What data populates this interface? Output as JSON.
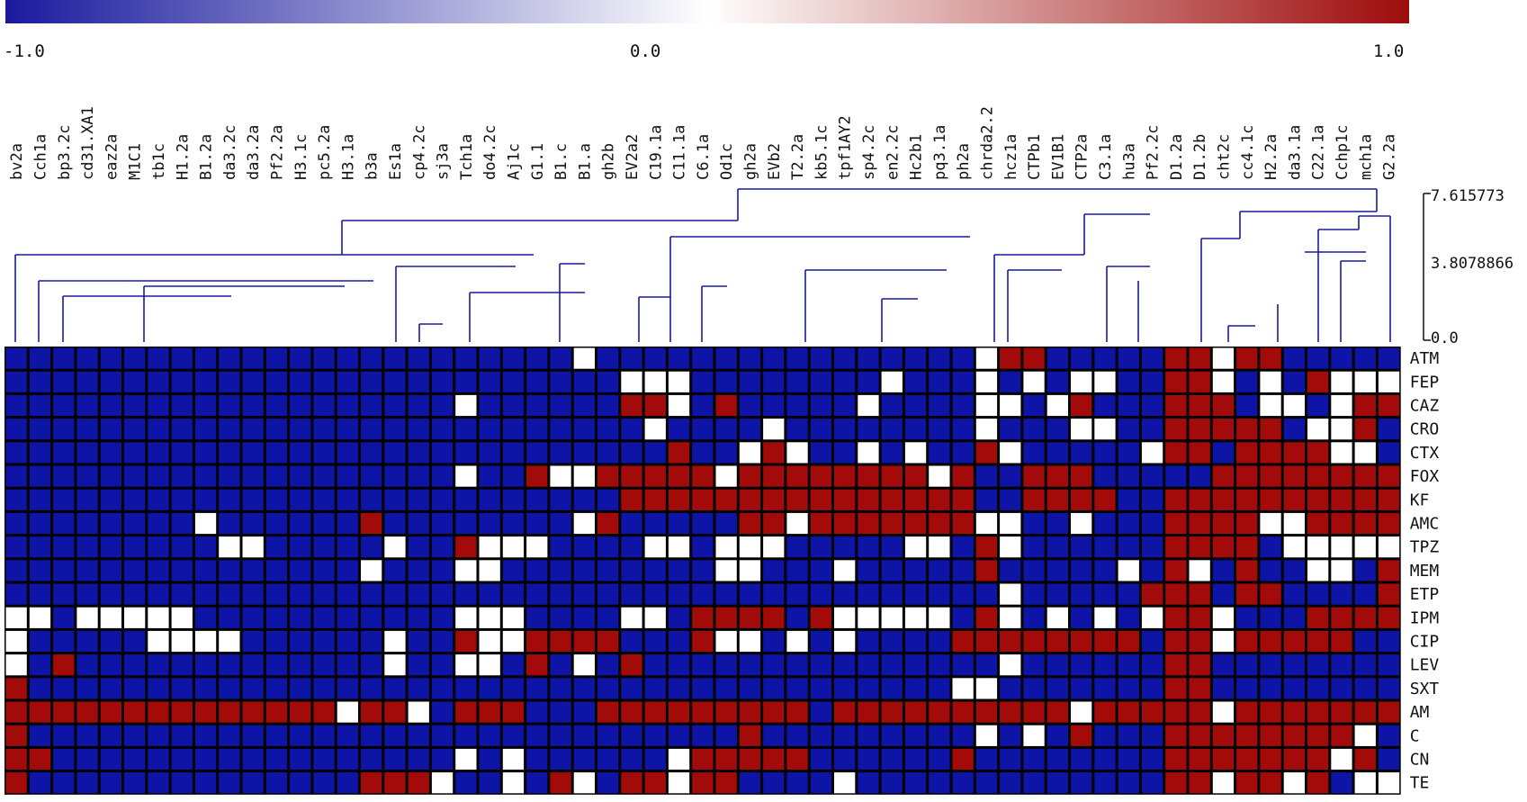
{
  "chart_data": {
    "type": "heatmap",
    "colorbar": {
      "min_label": "-1.0",
      "mid_label": "0.0",
      "max_label": "1.0",
      "colors": [
        "#1a1a9e",
        "#ffffff",
        "#9e0c0c"
      ]
    },
    "cell_colors": {
      "-1": "#0d14a6",
      "0": "#ffffff",
      "1": "#a30b0b"
    },
    "dendrogram_scale": {
      "max": "7.615773",
      "mid": "3.8078866",
      "min": "0.0"
    },
    "columns": [
      "bv2a",
      "Cch1a",
      "bp3.2c",
      "cd31.XA1",
      "eaz2a",
      "M1C1",
      "tb1c",
      "H1.2a",
      "B1.2a",
      "da3.2c",
      "da3.2a",
      "Pf2.2a",
      "H3.1c",
      "pc5.2a",
      "H3.1a",
      "b3a",
      "Es1a",
      "cp4.2c",
      "sj3a",
      "Tch1a",
      "do4.2c",
      "Aj1c",
      "G1.1",
      "B1.c",
      "B1.a",
      "gh2b",
      "EV2a2",
      "C19.1a",
      "C11.1a",
      "C6.1a",
      "Od1c",
      "gh2a",
      "EVb2",
      "T2.2a",
      "kb5.1c",
      "tpf1AY2",
      "sp4.2c",
      "en2.2c",
      "Hc2b1",
      "pq3.1a",
      "ph2a",
      "chrda2.2",
      "hcz1a",
      "CTPb1",
      "EV1B1",
      "CTP2a",
      "C3.1a",
      "hu3a",
      "Pf2.2c",
      "D1.2a",
      "D1.2b",
      "cht2c",
      "cc4.1c",
      "H2.2a",
      "da3.1a",
      "C22.1a",
      "Cchp1c",
      "mch1a",
      "G2.2a"
    ],
    "rows": [
      "ATM",
      "FEP",
      "CAZ",
      "CRO",
      "CTX",
      "FOX",
      "KF",
      "AMC",
      "TPZ",
      "MEM",
      "ETP",
      "IPM",
      "CIP",
      "LEV",
      "SXT",
      "AM",
      "C",
      "CN",
      "TE"
    ],
    "values": [
      [
        -1,
        -1,
        -1,
        -1,
        -1,
        -1,
        -1,
        -1,
        -1,
        -1,
        -1,
        -1,
        -1,
        -1,
        -1,
        -1,
        -1,
        -1,
        -1,
        -1,
        -1,
        -1,
        -1,
        -1,
        0,
        -1,
        -1,
        -1,
        -1,
        -1,
        -1,
        -1,
        -1,
        -1,
        -1,
        -1,
        -1,
        -1,
        -1,
        -1,
        -1,
        0,
        1,
        1,
        -1,
        -1,
        -1,
        -1,
        -1,
        1,
        1,
        0,
        1,
        1,
        -1,
        -1,
        -1,
        -1,
        -1
      ],
      [
        -1,
        -1,
        -1,
        -1,
        -1,
        -1,
        -1,
        -1,
        -1,
        -1,
        -1,
        -1,
        -1,
        -1,
        -1,
        -1,
        -1,
        -1,
        -1,
        -1,
        -1,
        -1,
        -1,
        -1,
        -1,
        -1,
        0,
        0,
        0,
        -1,
        -1,
        -1,
        -1,
        -1,
        -1,
        -1,
        -1,
        0,
        -1,
        -1,
        -1,
        0,
        -1,
        0,
        -1,
        0,
        0,
        -1,
        -1,
        1,
        1,
        0,
        -1,
        0,
        -1,
        1,
        0,
        0,
        0
      ],
      [
        -1,
        -1,
        -1,
        -1,
        -1,
        -1,
        -1,
        -1,
        -1,
        -1,
        -1,
        -1,
        -1,
        -1,
        -1,
        -1,
        -1,
        -1,
        -1,
        0,
        -1,
        -1,
        -1,
        -1,
        -1,
        -1,
        1,
        1,
        0,
        -1,
        1,
        -1,
        -1,
        -1,
        -1,
        -1,
        0,
        -1,
        -1,
        -1,
        -1,
        0,
        0,
        -1,
        0,
        1,
        -1,
        -1,
        -1,
        1,
        1,
        1,
        -1,
        0,
        0,
        -1,
        0,
        1,
        1
      ],
      [
        -1,
        -1,
        -1,
        -1,
        -1,
        -1,
        -1,
        -1,
        -1,
        -1,
        -1,
        -1,
        -1,
        -1,
        -1,
        -1,
        -1,
        -1,
        -1,
        -1,
        -1,
        -1,
        -1,
        -1,
        -1,
        -1,
        -1,
        0,
        -1,
        -1,
        -1,
        -1,
        0,
        -1,
        -1,
        -1,
        -1,
        -1,
        -1,
        -1,
        -1,
        0,
        -1,
        -1,
        -1,
        0,
        0,
        -1,
        -1,
        1,
        1,
        1,
        1,
        1,
        -1,
        0,
        0,
        1,
        -1
      ],
      [
        -1,
        -1,
        -1,
        -1,
        -1,
        -1,
        -1,
        -1,
        -1,
        -1,
        -1,
        -1,
        -1,
        -1,
        -1,
        -1,
        -1,
        -1,
        -1,
        -1,
        -1,
        -1,
        -1,
        -1,
        -1,
        -1,
        -1,
        -1,
        1,
        -1,
        -1,
        0,
        1,
        0,
        -1,
        -1,
        0,
        -1,
        0,
        -1,
        -1,
        1,
        0,
        -1,
        -1,
        -1,
        -1,
        -1,
        0,
        1,
        1,
        -1,
        1,
        1,
        1,
        1,
        0,
        0,
        -1
      ],
      [
        -1,
        -1,
        -1,
        -1,
        -1,
        -1,
        -1,
        -1,
        -1,
        -1,
        -1,
        -1,
        -1,
        -1,
        -1,
        -1,
        -1,
        -1,
        -1,
        0,
        -1,
        -1,
        1,
        0,
        0,
        1,
        1,
        1,
        1,
        1,
        0,
        1,
        1,
        1,
        1,
        1,
        1,
        1,
        1,
        0,
        1,
        -1,
        -1,
        1,
        1,
        1,
        -1,
        -1,
        -1,
        -1,
        -1,
        1,
        1,
        1,
        1,
        1,
        1,
        1,
        1
      ],
      [
        -1,
        -1,
        -1,
        -1,
        -1,
        -1,
        -1,
        -1,
        -1,
        -1,
        -1,
        -1,
        -1,
        -1,
        -1,
        -1,
        -1,
        -1,
        -1,
        -1,
        -1,
        -1,
        -1,
        -1,
        -1,
        -1,
        1,
        1,
        1,
        1,
        1,
        1,
        1,
        1,
        1,
        1,
        1,
        1,
        1,
        1,
        1,
        -1,
        -1,
        1,
        1,
        1,
        1,
        -1,
        -1,
        1,
        1,
        1,
        1,
        1,
        1,
        1,
        1,
        1,
        1
      ],
      [
        -1,
        -1,
        -1,
        -1,
        -1,
        -1,
        -1,
        -1,
        0,
        -1,
        -1,
        -1,
        -1,
        -1,
        -1,
        1,
        -1,
        -1,
        -1,
        -1,
        -1,
        -1,
        -1,
        -1,
        0,
        1,
        -1,
        -1,
        -1,
        -1,
        -1,
        1,
        1,
        0,
        1,
        1,
        1,
        1,
        1,
        1,
        1,
        0,
        0,
        -1,
        -1,
        0,
        -1,
        -1,
        -1,
        1,
        1,
        1,
        1,
        0,
        0,
        1,
        1,
        1,
        1
      ],
      [
        -1,
        -1,
        -1,
        -1,
        -1,
        -1,
        -1,
        -1,
        -1,
        0,
        0,
        -1,
        -1,
        -1,
        -1,
        -1,
        0,
        -1,
        -1,
        1,
        0,
        0,
        0,
        -1,
        -1,
        -1,
        -1,
        0,
        0,
        -1,
        0,
        0,
        0,
        -1,
        -1,
        -1,
        -1,
        -1,
        0,
        0,
        -1,
        1,
        0,
        -1,
        -1,
        -1,
        -1,
        -1,
        -1,
        1,
        1,
        1,
        1,
        -1,
        0,
        0,
        0,
        0,
        0
      ],
      [
        -1,
        -1,
        -1,
        -1,
        -1,
        -1,
        -1,
        -1,
        -1,
        -1,
        -1,
        -1,
        -1,
        -1,
        -1,
        0,
        -1,
        -1,
        -1,
        0,
        0,
        -1,
        -1,
        -1,
        -1,
        -1,
        -1,
        -1,
        -1,
        -1,
        0,
        0,
        -1,
        -1,
        -1,
        0,
        -1,
        -1,
        -1,
        -1,
        -1,
        1,
        -1,
        -1,
        -1,
        -1,
        -1,
        0,
        -1,
        1,
        0,
        -1,
        1,
        -1,
        -1,
        0,
        0,
        -1,
        1
      ],
      [
        -1,
        -1,
        -1,
        -1,
        -1,
        -1,
        -1,
        -1,
        -1,
        -1,
        -1,
        -1,
        -1,
        -1,
        -1,
        -1,
        -1,
        -1,
        -1,
        -1,
        -1,
        -1,
        -1,
        -1,
        -1,
        -1,
        -1,
        -1,
        -1,
        -1,
        -1,
        -1,
        -1,
        -1,
        -1,
        -1,
        -1,
        -1,
        -1,
        -1,
        -1,
        -1,
        0,
        -1,
        -1,
        -1,
        -1,
        -1,
        1,
        1,
        1,
        -1,
        1,
        1,
        -1,
        -1,
        -1,
        -1,
        1
      ],
      [
        0,
        0,
        -1,
        0,
        0,
        0,
        0,
        0,
        -1,
        -1,
        -1,
        -1,
        -1,
        -1,
        -1,
        -1,
        -1,
        -1,
        -1,
        0,
        0,
        0,
        -1,
        -1,
        -1,
        -1,
        0,
        0,
        -1,
        1,
        1,
        1,
        1,
        -1,
        1,
        0,
        0,
        0,
        0,
        0,
        -1,
        1,
        0,
        -1,
        0,
        -1,
        0,
        -1,
        0,
        1,
        1,
        0,
        -1,
        -1,
        -1,
        1,
        1,
        1,
        1
      ],
      [
        0,
        -1,
        -1,
        -1,
        -1,
        -1,
        0,
        0,
        0,
        0,
        -1,
        -1,
        -1,
        -1,
        -1,
        -1,
        0,
        -1,
        -1,
        1,
        0,
        0,
        1,
        1,
        1,
        1,
        -1,
        -1,
        -1,
        1,
        0,
        0,
        -1,
        0,
        -1,
        0,
        -1,
        -1,
        -1,
        -1,
        1,
        1,
        1,
        1,
        1,
        1,
        1,
        1,
        -1,
        1,
        1,
        0,
        1,
        1,
        1,
        1,
        1,
        -1,
        -1
      ],
      [
        0,
        -1,
        1,
        -1,
        -1,
        -1,
        -1,
        -1,
        -1,
        -1,
        -1,
        -1,
        -1,
        -1,
        -1,
        -1,
        0,
        -1,
        -1,
        0,
        0,
        -1,
        1,
        -1,
        0,
        -1,
        1,
        -1,
        -1,
        -1,
        -1,
        -1,
        -1,
        -1,
        -1,
        -1,
        -1,
        -1,
        -1,
        -1,
        -1,
        -1,
        0,
        -1,
        -1,
        -1,
        -1,
        -1,
        -1,
        1,
        1,
        -1,
        -1,
        -1,
        -1,
        -1,
        -1,
        -1,
        -1
      ],
      [
        1,
        -1,
        -1,
        -1,
        -1,
        -1,
        -1,
        -1,
        -1,
        -1,
        -1,
        -1,
        -1,
        -1,
        -1,
        -1,
        -1,
        -1,
        -1,
        -1,
        -1,
        -1,
        -1,
        -1,
        -1,
        -1,
        -1,
        -1,
        -1,
        -1,
        -1,
        -1,
        -1,
        -1,
        -1,
        -1,
        -1,
        -1,
        -1,
        -1,
        0,
        0,
        -1,
        -1,
        -1,
        -1,
        -1,
        -1,
        -1,
        1,
        1,
        -1,
        -1,
        -1,
        -1,
        -1,
        -1,
        -1,
        -1
      ],
      [
        1,
        1,
        1,
        1,
        1,
        1,
        1,
        1,
        1,
        1,
        1,
        1,
        1,
        1,
        0,
        1,
        1,
        0,
        -1,
        1,
        1,
        1,
        -1,
        -1,
        -1,
        1,
        1,
        1,
        1,
        1,
        1,
        1,
        1,
        1,
        -1,
        1,
        1,
        1,
        1,
        1,
        1,
        1,
        1,
        1,
        1,
        0,
        1,
        1,
        1,
        1,
        1,
        0,
        1,
        1,
        1,
        1,
        1,
        1,
        1
      ],
      [
        1,
        -1,
        -1,
        -1,
        -1,
        -1,
        -1,
        -1,
        -1,
        -1,
        -1,
        -1,
        -1,
        -1,
        -1,
        -1,
        -1,
        -1,
        -1,
        -1,
        -1,
        -1,
        -1,
        -1,
        -1,
        -1,
        -1,
        -1,
        -1,
        -1,
        -1,
        1,
        -1,
        -1,
        -1,
        -1,
        -1,
        -1,
        -1,
        -1,
        -1,
        0,
        -1,
        0,
        -1,
        1,
        -1,
        -1,
        -1,
        1,
        1,
        1,
        1,
        1,
        1,
        1,
        1,
        0,
        -1
      ],
      [
        1,
        1,
        -1,
        -1,
        -1,
        -1,
        -1,
        -1,
        -1,
        -1,
        -1,
        -1,
        -1,
        -1,
        -1,
        -1,
        -1,
        -1,
        -1,
        0,
        -1,
        0,
        -1,
        -1,
        -1,
        -1,
        -1,
        -1,
        0,
        1,
        1,
        1,
        1,
        1,
        -1,
        -1,
        -1,
        -1,
        -1,
        -1,
        1,
        -1,
        -1,
        -1,
        -1,
        -1,
        -1,
        -1,
        -1,
        1,
        1,
        1,
        1,
        1,
        1,
        1,
        0,
        1,
        -1
      ],
      [
        1,
        -1,
        -1,
        -1,
        -1,
        -1,
        -1,
        -1,
        -1,
        -1,
        -1,
        -1,
        -1,
        -1,
        -1,
        1,
        1,
        1,
        0,
        -1,
        -1,
        0,
        -1,
        1,
        0,
        -1,
        1,
        1,
        0,
        1,
        1,
        -1,
        -1,
        -1,
        -1,
        0,
        -1,
        -1,
        -1,
        -1,
        -1,
        -1,
        -1,
        -1,
        -1,
        -1,
        -1,
        -1,
        -1,
        1,
        1,
        0,
        1,
        1,
        0,
        1,
        -1,
        0,
        0
      ]
    ]
  }
}
